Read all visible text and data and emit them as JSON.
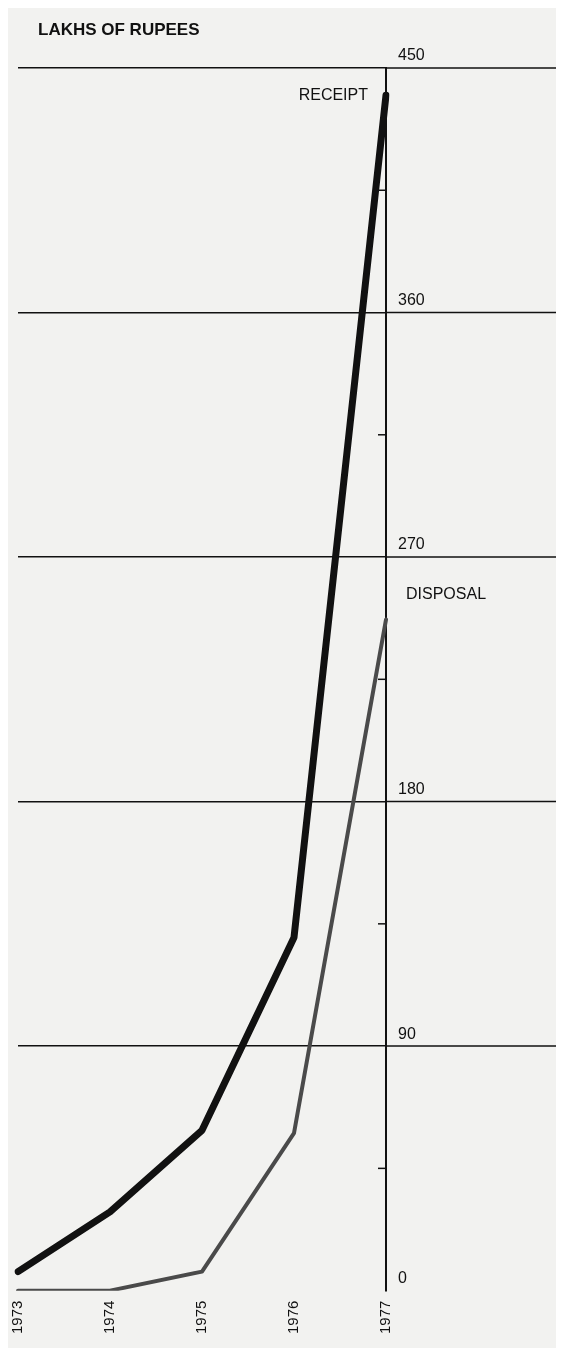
{
  "chart_data": {
    "type": "line",
    "ylabel": "LAKHS OF RUPEES",
    "categories": [
      "1973",
      "1974",
      "1975",
      "1976",
      "1977"
    ],
    "series": [
      {
        "name": "RECEIPT",
        "color": "#111111",
        "values": [
          7,
          29,
          59,
          130,
          440
        ]
      },
      {
        "name": "DISPOSAL",
        "color": "#4a4a4a",
        "values": [
          0,
          0,
          7,
          58,
          247
        ]
      }
    ],
    "ylim": [
      0,
      450
    ],
    "yticks": [
      0,
      {
        "value": 45,
        "label": null
      },
      90,
      {
        "value": 135,
        "label": null
      },
      180,
      {
        "value": 225,
        "label": null
      },
      270,
      {
        "value": 315,
        "label": null
      },
      360,
      {
        "value": 405,
        "label": null
      },
      450
    ],
    "grid": "y",
    "legend": false,
    "marker": "none"
  }
}
